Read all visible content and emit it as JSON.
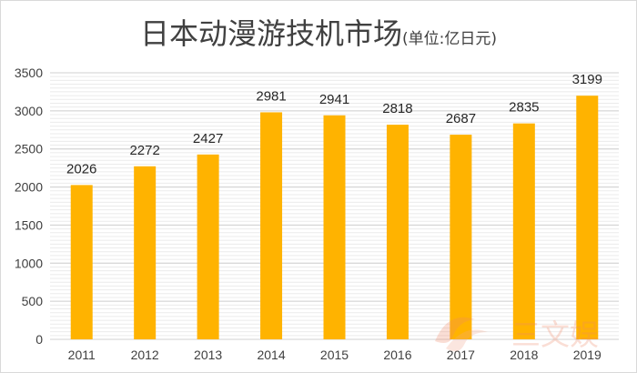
{
  "chart_data": {
    "type": "bar",
    "title": "日本动漫游技机市场",
    "subtitle": "(单位:亿日元)",
    "categories": [
      "2011",
      "2012",
      "2013",
      "2014",
      "2015",
      "2016",
      "2017",
      "2018",
      "2019"
    ],
    "values": [
      2026,
      2272,
      2427,
      2981,
      2941,
      2818,
      2687,
      2835,
      3199
    ],
    "ylim": [
      0,
      3500
    ],
    "yticks": [
      0,
      500,
      1000,
      1500,
      2000,
      2500,
      3000,
      3500
    ],
    "grid": true,
    "bar_color": "#ffb300",
    "data_labels": true
  },
  "watermark": {
    "text": "三文娱",
    "color": "#f08a6a"
  }
}
